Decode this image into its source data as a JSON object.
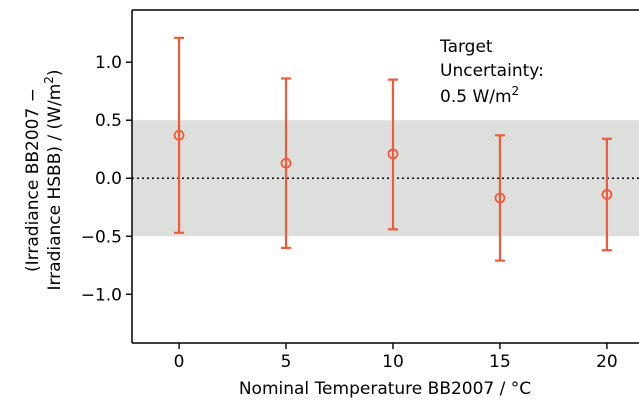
{
  "chart_data": {
    "type": "scatter",
    "xlabel": "Nominal Temperature BB2007 / °C",
    "ylabel_line1": "(Irradiance BB2007 −",
    "ylabel_line2": "Irradiance HSBB) / (W/m",
    "ylabel_sup": "2",
    "ylabel_end": ")",
    "xlim": [
      -2.2,
      21.5
    ],
    "ylim": [
      -1.42,
      1.45
    ],
    "x_ticks": [
      0,
      5,
      10,
      15,
      20
    ],
    "x_tick_labels": [
      "0",
      "5",
      "10",
      "15",
      "20"
    ],
    "y_ticks": [
      1.0,
      0.5,
      0.0,
      -0.5,
      -1.0
    ],
    "y_tick_labels": [
      "1.0",
      "0.5",
      "0.0",
      "−0.5",
      "−1.0"
    ],
    "grid": false,
    "marker_color": "#f05a3a",
    "band_color": "#dcdfdc",
    "zero_line_style": "dotted",
    "target_band": [
      -0.5,
      0.5
    ],
    "series": [
      {
        "x": [
          0,
          5,
          10,
          15,
          20
        ],
        "y": [
          0.37,
          0.13,
          0.21,
          -0.17,
          -0.14
        ],
        "yerr_low": [
          -0.47,
          -0.6,
          -0.44,
          -0.71,
          -0.62
        ],
        "yerr_high": [
          1.21,
          0.86,
          0.85,
          0.37,
          0.34
        ]
      }
    ],
    "annotation": {
      "line1": "Target",
      "line2": "Uncertainty:",
      "line3": "0.5 W/m",
      "line3_sup": "2"
    }
  }
}
